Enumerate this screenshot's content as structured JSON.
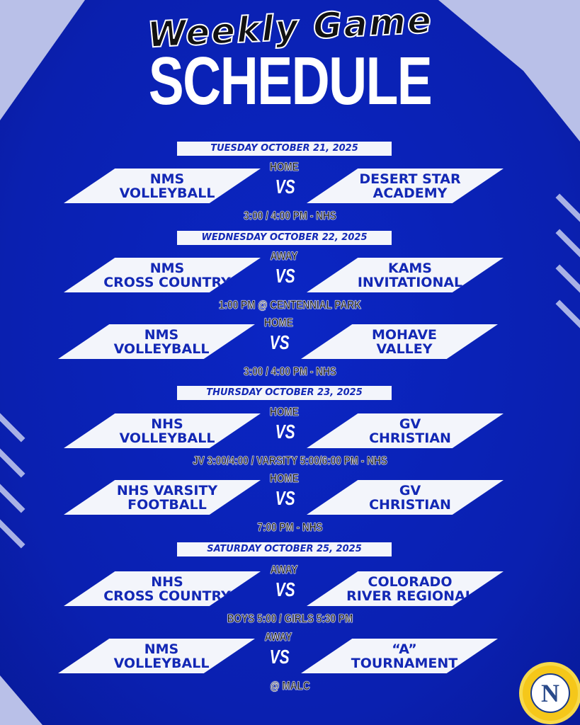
{
  "title": {
    "line1": "Weekly Game",
    "line2": "SCHEDULE"
  },
  "colors": {
    "background": "#0a22b8",
    "panel": "#f3f5fb",
    "team_text": "#1328b5"
  },
  "days": [
    {
      "date": "TUESDAY OCTOBER 21, 2025",
      "games": [
        {
          "label": "HOME",
          "left": "NMS\nVOLLEYBALL",
          "right": "DESERT STAR\nACADEMY",
          "time": "3:00 / 4:00 PM - NHS"
        }
      ]
    },
    {
      "date": "WEDNESDAY OCTOBER 22, 2025",
      "games": [
        {
          "label": "AWAY",
          "left": "NMS\nCROSS COUNTRY",
          "right": "KAMS\nINVITATIONAL",
          "time": "1:00 PM @ CENTENNIAL PARK"
        },
        {
          "label": "HOME",
          "left": "NMS\nVOLLEYBALL",
          "right": "MOHAVE\nVALLEY",
          "time": "3:00 / 4:00 PM - NHS"
        }
      ]
    },
    {
      "date": "THURSDAY OCTOBER 23, 2025",
      "games": [
        {
          "label": "HOME",
          "left": "NHS\nVOLLEYBALL",
          "right": "GV\nCHRISTIAN",
          "time": "JV 3:00/4:00 / VARSITY 5:00/6:00 PM  - NHS"
        },
        {
          "label": "HOME",
          "left": "NHS VARSITY\nFOOTBALL",
          "right": "GV\nCHRISTIAN",
          "time": "7:00 PM - NHS"
        }
      ]
    },
    {
      "date": "SATURDAY OCTOBER 25, 2025",
      "games": [
        {
          "label": "AWAY",
          "left": "NHS\nCROSS COUNTRY",
          "right": "COLORADO\nRIVER REGIONAL",
          "time": "BOYS 5:00 / GIRLS 5:30 PM"
        },
        {
          "label": "AWAY",
          "left": "NMS\nVOLLEYBALL",
          "right": "“A”\nTOURNAMENT",
          "time": "@ MALC"
        }
      ]
    }
  ],
  "vs": "VS",
  "logo": {
    "letter": "N",
    "icon": "school-sun-seal-logo"
  }
}
